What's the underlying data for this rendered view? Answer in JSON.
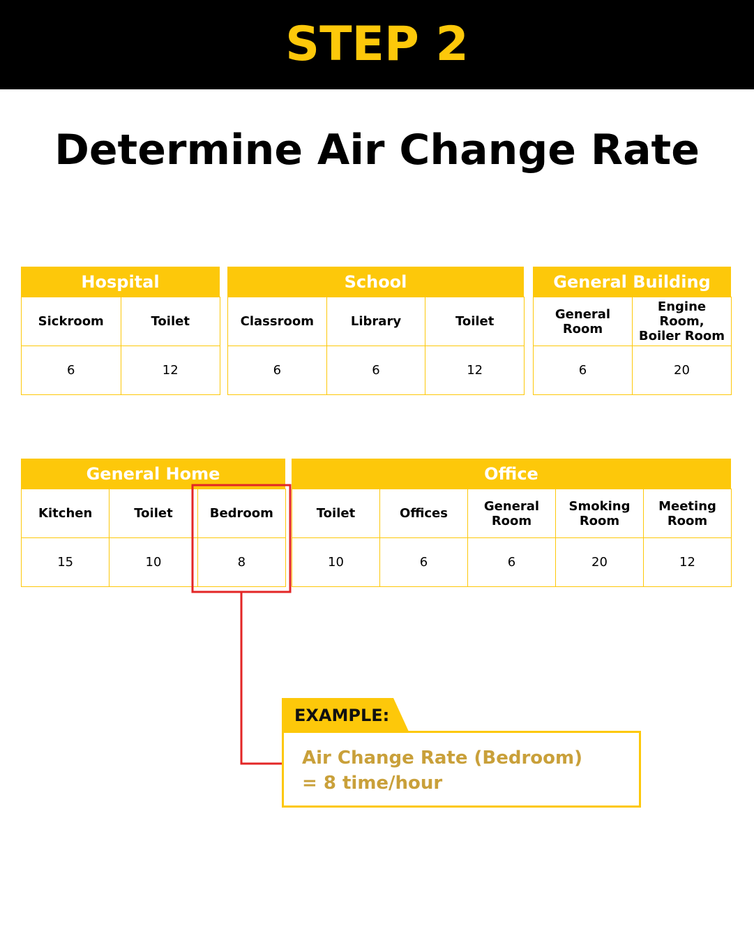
{
  "header": {
    "title": "STEP 2"
  },
  "heading": "Determine Air Change Rate",
  "tables": [
    {
      "title": "Hospital",
      "columns": [
        "Sickroom",
        "Toilet"
      ],
      "values": [
        "6",
        "12"
      ]
    },
    {
      "title": "School",
      "columns": [
        "Classroom",
        "Library",
        "Toilet"
      ],
      "values": [
        "6",
        "6",
        "12"
      ]
    },
    {
      "title": "General Building",
      "columns": [
        "General Room",
        "Engine Room, Boiler Room"
      ],
      "values": [
        "6",
        "20"
      ]
    },
    {
      "title": "General Home",
      "columns": [
        "Kitchen",
        "Toilet",
        "Bedroom"
      ],
      "values": [
        "15",
        "10",
        "8"
      ]
    },
    {
      "title": "Office",
      "columns": [
        "Toilet",
        "Offices",
        "General Room",
        "Smoking Room",
        "Meeting Room"
      ],
      "values": [
        "10",
        "6",
        "6",
        "20",
        "12"
      ]
    }
  ],
  "example": {
    "label": "EXAMPLE:",
    "lines": [
      "Air Change Rate (Bedroom)",
      "= 8 time/hour"
    ]
  }
}
